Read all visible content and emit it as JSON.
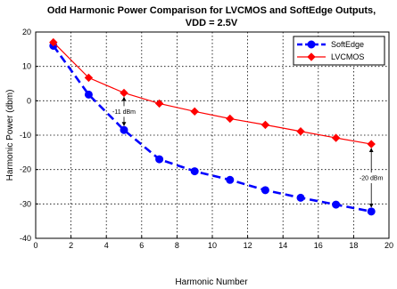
{
  "chart_data": {
    "type": "line",
    "title_line1": "Odd Harmonic Power Comparison for LVCMOS and SoftEdge Outputs,",
    "title_line2": "VDD = 2.5V",
    "xlabel": "Harmonic Number",
    "ylabel": "Harmonic Power (dbm)",
    "xlim": [
      0,
      20
    ],
    "ylim": [
      -40,
      20
    ],
    "xticks": [
      0,
      2,
      4,
      6,
      8,
      10,
      12,
      14,
      16,
      18,
      20
    ],
    "yticks": [
      -40,
      -30,
      -20,
      -10,
      0,
      10,
      20
    ],
    "grid": true,
    "legend_position": "top-right",
    "series": [
      {
        "name": "SoftEdge",
        "color": "#0000ff",
        "line_style": "dashed",
        "marker": "circle",
        "x": [
          1,
          3,
          5,
          7,
          9,
          11,
          13,
          15,
          17,
          19
        ],
        "y": [
          16,
          1.8,
          -8.5,
          -17,
          -20.5,
          -23,
          -26,
          -28.2,
          -30.2,
          -32.2
        ]
      },
      {
        "name": "LVCMOS",
        "color": "#ff0000",
        "line_style": "solid",
        "marker": "diamond",
        "x": [
          1,
          3,
          5,
          7,
          9,
          11,
          13,
          15,
          17,
          19
        ],
        "y": [
          17,
          6.7,
          2.3,
          -0.8,
          -3.1,
          -5.2,
          -7,
          -8.9,
          -10.8,
          -12.6
        ]
      }
    ],
    "annotations": [
      {
        "text": "-11 dBm",
        "x": 5,
        "from": 2.3,
        "to": -8.5
      },
      {
        "text": "-20 dBm",
        "x": 19,
        "from": -12.6,
        "to": -32.2
      }
    ]
  }
}
